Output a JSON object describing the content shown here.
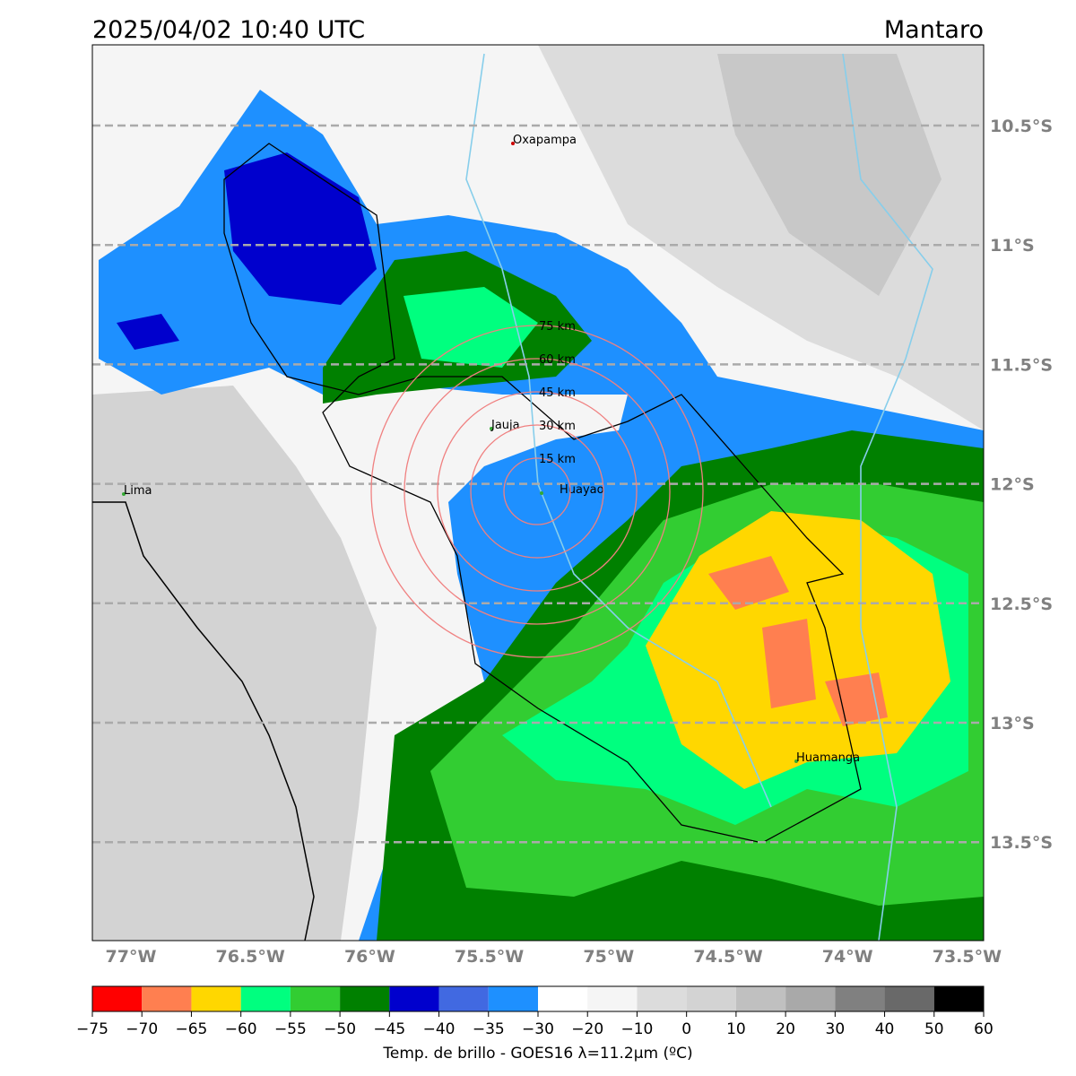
{
  "header": {
    "title": "2025/04/02 10:40 UTC",
    "region": "Mantaro"
  },
  "map": {
    "lat_labels": [
      "10.5°S",
      "11°S",
      "11.5°S",
      "12°S",
      "12.5°S",
      "13°S",
      "13.5°S"
    ],
    "lon_labels": [
      "77°W",
      "76.5°W",
      "76°W",
      "75.5°W",
      "75°W",
      "74.5°W",
      "74°W",
      "73.5°W"
    ],
    "cities": [
      "Oxapampa",
      "Jauja",
      "Lima",
      "Huayao",
      "Huamanga"
    ],
    "ring_labels": [
      "15 km",
      "30 km",
      "45 km",
      "60 km",
      "75 km"
    ]
  },
  "colorbar": {
    "label": "Temp. de brillo - GOES16 λ=11.2μm (ºC)",
    "colors": [
      "#ff0000",
      "#ff7f50",
      "#ffd700",
      "#00ff7f",
      "#32cd32",
      "#008000",
      "#0000cd",
      "#4169e1",
      "#1e90ff",
      "#ffffff",
      "#f5f5f5",
      "#dcdcdc",
      "#d3d3d3",
      "#c0c0c0",
      "#a9a9a9",
      "#808080",
      "#696969",
      "#000000"
    ],
    "ticks": [
      {
        "value": -75,
        "label": "−75"
      },
      {
        "value": -70,
        "label": "−70"
      },
      {
        "value": -65,
        "label": "−65"
      },
      {
        "value": -60,
        "label": "−60"
      },
      {
        "value": -55,
        "label": "−55"
      },
      {
        "value": -50,
        "label": "−50"
      },
      {
        "value": -45,
        "label": "−45"
      },
      {
        "value": -40,
        "label": "−40"
      },
      {
        "value": -35,
        "label": "−35"
      },
      {
        "value": -30,
        "label": "−30"
      },
      {
        "value": -20,
        "label": "−20"
      },
      {
        "value": -10,
        "label": "−10"
      },
      0,
      10,
      20,
      30,
      40,
      50,
      60
    ]
  }
}
